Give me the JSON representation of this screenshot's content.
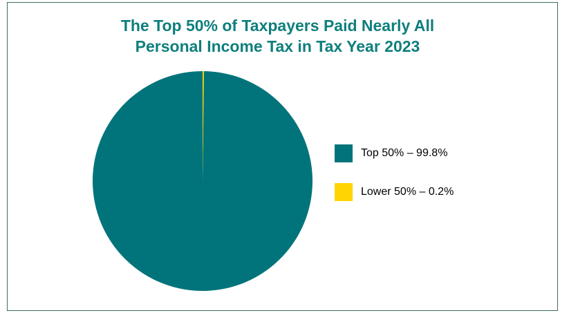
{
  "chart_data": {
    "type": "pie",
    "title_lines": [
      "The Top 50% of Taxpayers Paid Nearly All",
      "Personal Income Tax in Tax Year 2023"
    ],
    "slices": [
      {
        "name": "Top 50%",
        "value": 99.8,
        "label": "Top 50% – 99.8%",
        "color": "#00747a"
      },
      {
        "name": "Lower 50%",
        "value": 0.2,
        "label": "Lower 50% – 0.2%",
        "color": "#ffd400"
      }
    ],
    "legend_position": "right",
    "title_color": "#0e7f7c",
    "border_color": "#3f6b63"
  }
}
